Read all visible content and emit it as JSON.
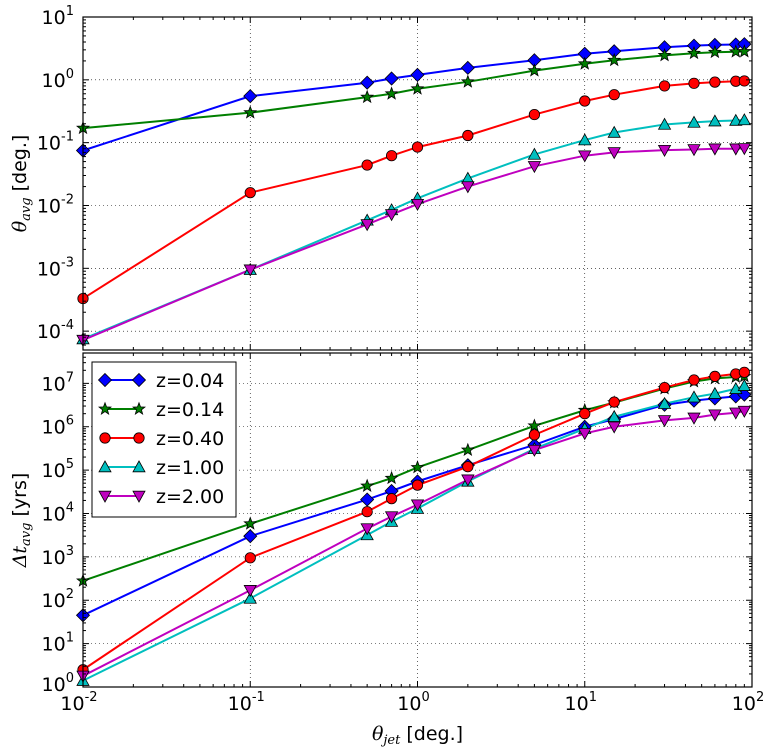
{
  "chart_data": [
    {
      "type": "line",
      "panel": "top",
      "xscale": "log",
      "yscale": "log",
      "xlim_exponents": [
        -2,
        2
      ],
      "ylim_exponents": [
        -4.3,
        1
      ],
      "xlabel": "",
      "ylabel": {
        "symbol": "θ",
        "subscript": "avg",
        "unit": "[deg.]"
      },
      "grid": true,
      "x": [
        0.01,
        0.1,
        0.5,
        0.7,
        1,
        2,
        5,
        10,
        15,
        30,
        45,
        60,
        80,
        90
      ],
      "series": [
        {
          "name": "z=0.04",
          "color": "#0000ff",
          "marker": "diamond",
          "values": [
            0.075,
            0.55,
            0.9,
            1.05,
            1.2,
            1.55,
            2.05,
            2.6,
            2.85,
            3.3,
            3.5,
            3.6,
            3.65,
            3.7
          ]
        },
        {
          "name": "z=0.14",
          "color": "#007f00",
          "marker": "star",
          "values": [
            0.17,
            0.3,
            0.53,
            0.6,
            0.72,
            0.93,
            1.4,
            1.8,
            2.05,
            2.45,
            2.65,
            2.75,
            2.8,
            2.82
          ]
        },
        {
          "name": "z=0.40",
          "color": "#ff0000",
          "marker": "circle",
          "values": [
            0.00033,
            0.016,
            0.044,
            0.062,
            0.085,
            0.13,
            0.28,
            0.46,
            0.58,
            0.8,
            0.88,
            0.92,
            0.95,
            0.96
          ]
        },
        {
          "name": "z=1.00",
          "color": "#00bfbf",
          "marker": "triangle-up",
          "values": [
            7.5e-05,
            0.00095,
            0.0058,
            0.0085,
            0.013,
            0.027,
            0.065,
            0.11,
            0.145,
            0.195,
            0.21,
            0.22,
            0.225,
            0.23
          ]
        },
        {
          "name": "z=2.00",
          "color": "#bf00bf",
          "marker": "triangle-down",
          "values": [
            7.2e-05,
            0.00095,
            0.005,
            0.0072,
            0.0105,
            0.02,
            0.042,
            0.062,
            0.07,
            0.076,
            0.078,
            0.08,
            0.08,
            0.081
          ]
        }
      ]
    },
    {
      "type": "line",
      "panel": "bottom",
      "xscale": "log",
      "yscale": "log",
      "xlim_exponents": [
        -2,
        2
      ],
      "ylim_exponents": [
        0,
        7.7
      ],
      "xlabel": {
        "symbol": "θ",
        "subscript": "jet",
        "unit": "[deg.]"
      },
      "ylabel": {
        "symbol": "Δt",
        "subscript": "avg",
        "unit": "[yrs]"
      },
      "grid": true,
      "legend": "top-left",
      "x": [
        0.01,
        0.1,
        0.5,
        0.7,
        1,
        2,
        5,
        10,
        15,
        30,
        45,
        60,
        80,
        90
      ],
      "series": [
        {
          "name": "z=0.04",
          "color": "#0000ff",
          "marker": "diamond",
          "values": [
            45,
            3000,
            21000,
            33000,
            55000,
            130000,
            380000,
            1000000,
            1500000,
            3200000,
            4000000,
            4500000,
            5000000,
            5500000
          ]
        },
        {
          "name": "z=0.14",
          "color": "#007f00",
          "marker": "star",
          "values": [
            280,
            5800,
            43000,
            65000,
            115000,
            290000,
            1050000,
            2400000,
            3600000,
            7600000,
            11000000,
            13000000,
            14000000,
            14500000
          ]
        },
        {
          "name": "z=0.40",
          "color": "#ff0000",
          "marker": "circle",
          "values": [
            2.5,
            950,
            11000,
            22000,
            45000,
            120000,
            650000,
            2000000,
            3700000,
            8000000,
            12000000,
            14500000,
            16500000,
            18000000
          ]
        },
        {
          "name": "z=1.00",
          "color": "#00bfbf",
          "marker": "triangle-up",
          "values": [
            1.4,
            110,
            3200,
            6500,
            13000,
            55000,
            310000,
            900000,
            1700000,
            3400000,
            4800000,
            5800000,
            7500000,
            8800000
          ]
        },
        {
          "name": "z=2.00",
          "color": "#bf00bf",
          "marker": "triangle-down",
          "values": [
            1.8,
            170,
            4500,
            8500,
            16000,
            60000,
            290000,
            700000,
            1000000,
            1400000,
            1600000,
            1900000,
            2100000,
            2300000
          ]
        }
      ]
    }
  ],
  "tick_labels": {
    "x": [
      {
        "base": "10",
        "exp": "-2"
      },
      {
        "base": "10",
        "exp": "-1"
      },
      {
        "base": "10",
        "exp": "0"
      },
      {
        "base": "10",
        "exp": "1"
      },
      {
        "base": "10",
        "exp": "2"
      }
    ],
    "top_y": [
      {
        "base": "10",
        "exp": "1"
      },
      {
        "base": "10",
        "exp": "0"
      },
      {
        "base": "10",
        "exp": "-1"
      },
      {
        "base": "10",
        "exp": "-2"
      },
      {
        "base": "10",
        "exp": "-3"
      },
      {
        "base": "10",
        "exp": "-4"
      }
    ],
    "bottom_y": [
      {
        "base": "10",
        "exp": "7"
      },
      {
        "base": "10",
        "exp": "6"
      },
      {
        "base": "10",
        "exp": "5"
      },
      {
        "base": "10",
        "exp": "4"
      },
      {
        "base": "10",
        "exp": "3"
      },
      {
        "base": "10",
        "exp": "2"
      },
      {
        "base": "10",
        "exp": "1"
      },
      {
        "base": "10",
        "exp": "0"
      }
    ]
  }
}
